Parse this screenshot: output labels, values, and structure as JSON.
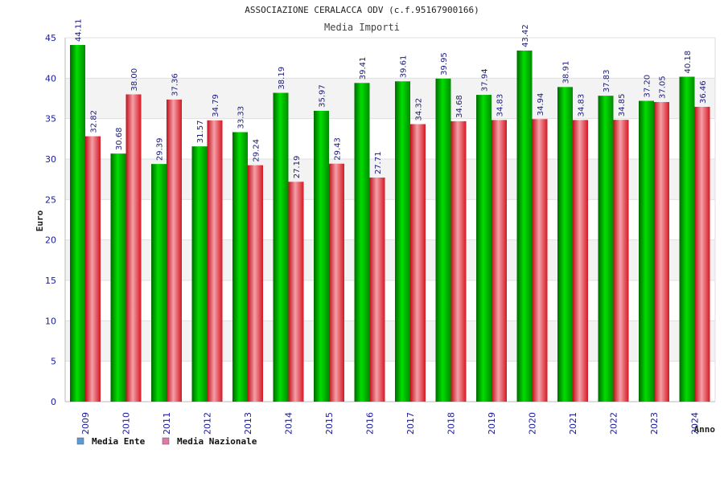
{
  "chart_data": {
    "type": "bar",
    "title": "ASSOCIAZIONE CERALACCA ODV (c.f.95167900166)",
    "subtitle": "Media Importi",
    "xlabel": "Anno",
    "ylabel": "Euro",
    "ylim": [
      0,
      45
    ],
    "yticks": [
      0,
      5,
      10,
      15,
      20,
      25,
      30,
      35,
      40,
      45
    ],
    "grid": true,
    "legend_position": "bottom-left",
    "categories": [
      "2009",
      "2010",
      "2011",
      "2012",
      "2013",
      "2014",
      "2015",
      "2016",
      "2017",
      "2018",
      "2019",
      "2020",
      "2021",
      "2022",
      "2023",
      "2024"
    ],
    "series": [
      {
        "name": "Media Ente",
        "legend_color": "#5b9bd5",
        "bar_color": "#00b000",
        "values": [
          44.11,
          30.68,
          29.39,
          31.57,
          33.33,
          38.19,
          35.97,
          39.41,
          39.61,
          39.95,
          37.94,
          43.42,
          38.91,
          37.83,
          37.2,
          40.18
        ],
        "labels": [
          "44.11",
          "30.68",
          "29.39",
          "31.57",
          "33.33",
          "38.19",
          "35.97",
          "39.41",
          "39.61",
          "39.95",
          "37.94",
          "43.42",
          "38.91",
          "37.83",
          "37.20",
          "40.18"
        ]
      },
      {
        "name": "Media Nazionale",
        "legend_color": "#e07aa8",
        "bar_color": "#e8202a",
        "values": [
          32.82,
          38.0,
          37.36,
          34.79,
          29.24,
          27.19,
          29.43,
          27.71,
          34.32,
          34.68,
          34.83,
          34.94,
          34.83,
          34.85,
          37.05,
          36.46
        ],
        "labels": [
          "32.82",
          "38.00",
          "37.36",
          "34.79",
          "29.24",
          "27.19",
          "29.43",
          "27.71",
          "34.32",
          "34.68",
          "34.83",
          "34.94",
          "34.83",
          "34.85",
          "37.05",
          "36.46"
        ]
      }
    ]
  }
}
